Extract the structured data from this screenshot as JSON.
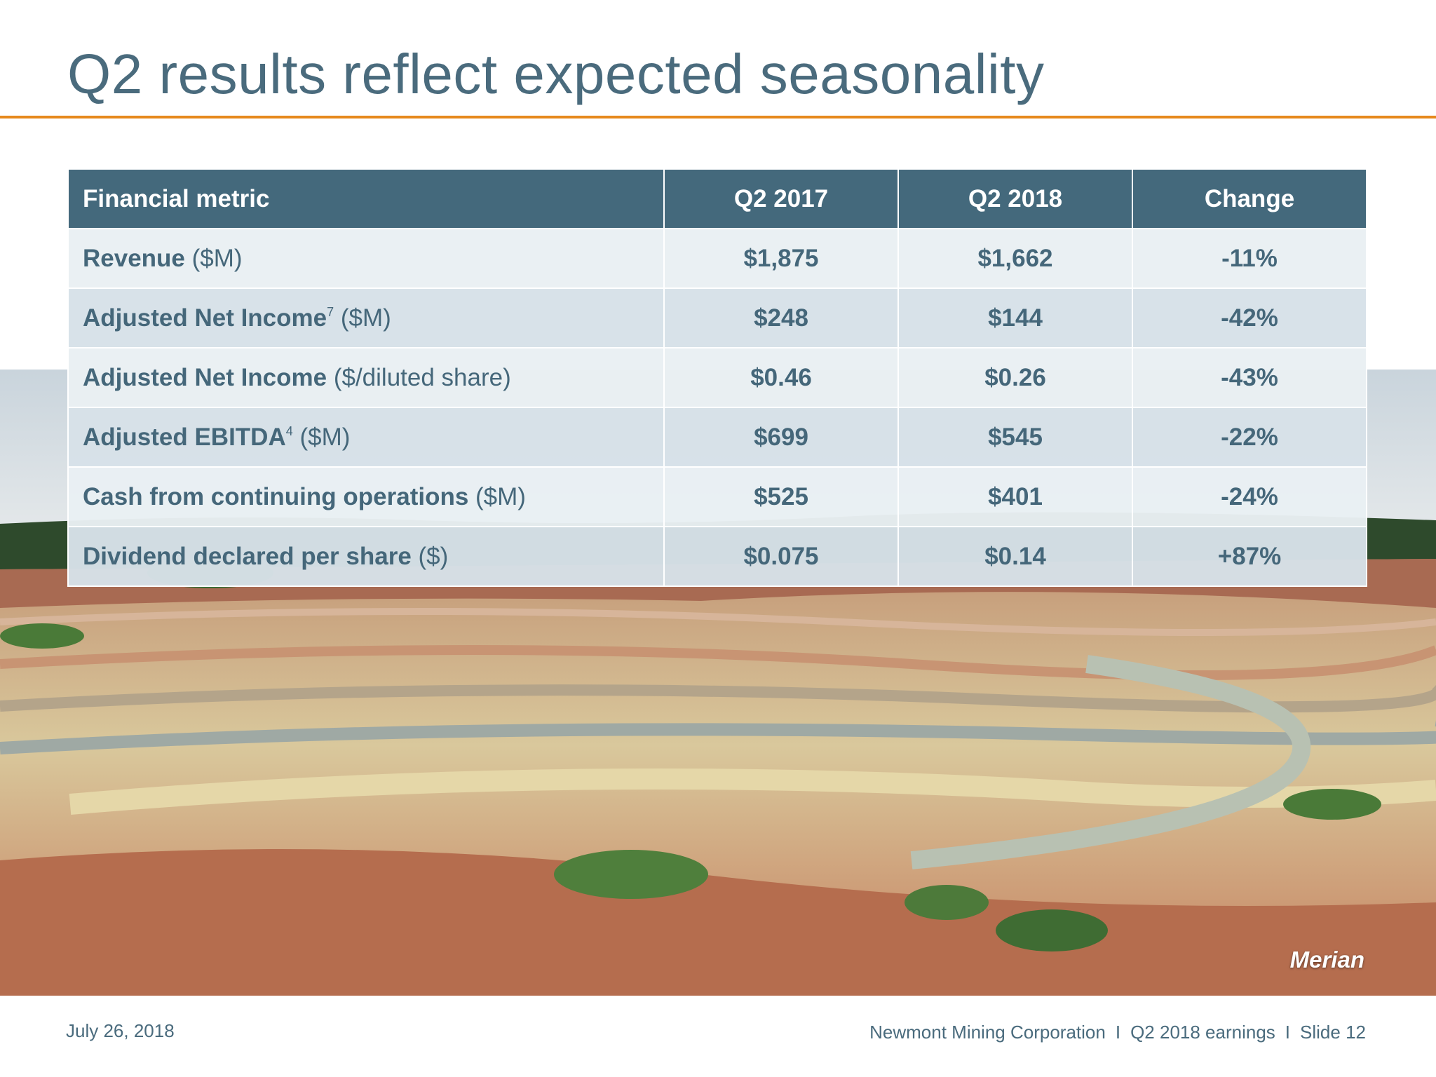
{
  "slide": {
    "title": "Q2 results reflect expected seasonality",
    "photo_caption": "Merian"
  },
  "table": {
    "headers": [
      "Financial metric",
      "Q2 2017",
      "Q2 2018",
      "Change"
    ],
    "rows": [
      {
        "metric_bold": "Revenue",
        "superscript": "",
        "metric_unit": " ($M)",
        "q2_2017": "$1,875",
        "q2_2018": "$1,662",
        "change": "-11%"
      },
      {
        "metric_bold": "Adjusted Net Income",
        "superscript": "7",
        "metric_unit": " ($M)",
        "q2_2017": "$248",
        "q2_2018": "$144",
        "change": "-42%"
      },
      {
        "metric_bold": "Adjusted Net Income",
        "superscript": "",
        "metric_unit": " ($/diluted share)",
        "q2_2017": "$0.46",
        "q2_2018": "$0.26",
        "change": "-43%"
      },
      {
        "metric_bold": "Adjusted EBITDA",
        "superscript": "4",
        "metric_unit": " ($M)",
        "q2_2017": "$699",
        "q2_2018": "$545",
        "change": "-22%"
      },
      {
        "metric_bold": "Cash from continuing operations",
        "superscript": "",
        "metric_unit": " ($M)",
        "q2_2017": "$525",
        "q2_2018": "$401",
        "change": "-24%"
      },
      {
        "metric_bold": "Dividend declared per share",
        "superscript": "",
        "metric_unit": " ($)",
        "q2_2017": "$0.075",
        "q2_2018": "$0.14",
        "change": "+87%"
      }
    ]
  },
  "footer": {
    "date": "July 26, 2018",
    "company": "Newmont Mining Corporation",
    "separator": "I",
    "report": "Q2 2018 earnings",
    "slide_number": "Slide 12"
  },
  "colors": {
    "title": "#4a6b7d",
    "accent_rule": "#e6891d",
    "table_header": "#44697c",
    "row_light": "#e9eff3",
    "row_dark": "#d7e1e8"
  }
}
